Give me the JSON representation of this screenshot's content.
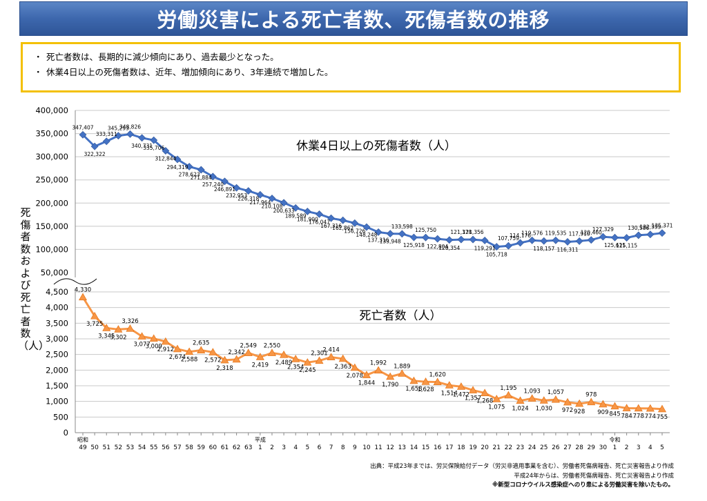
{
  "title": "労働災害による死亡者数、死傷者数の推移",
  "summary": [
    "死亡者数は、長期的に減少傾向にあり、過去最少となった。",
    "休業4日以上の死傷者数は、近年、増加傾向にあり、3年連続で増加した。"
  ],
  "bullet": "・",
  "y_axis_label": "死傷者数および死亡者数（人）",
  "source": {
    "line1": "出典：平成23年までは、労災保険給付データ（労災非適用事業を含む）、労働者死傷病報告、死亡災害報告より作成",
    "line2": "平成24年からは、労働者死傷病報告、死亡災害報告より作成",
    "line3": "※新型コロナウイルス感染症へのり患による労働災害を除いたもの。"
  },
  "chart_data": {
    "type": "line",
    "title": "",
    "x": [
      "49",
      "50",
      "51",
      "52",
      "53",
      "54",
      "55",
      "56",
      "57",
      "58",
      "59",
      "60",
      "61",
      "62",
      "63",
      "1",
      "2",
      "3",
      "4",
      "5",
      "6",
      "7",
      "8",
      "9",
      "10",
      "11",
      "12",
      "13",
      "14",
      "15",
      "16",
      "17",
      "18",
      "19",
      "20",
      "21",
      "22",
      "23",
      "24",
      "25",
      "26",
      "27",
      "28",
      "29",
      "30",
      "1",
      "2",
      "3",
      "4",
      "5"
    ],
    "era_labels": [
      {
        "index": 0,
        "label": "昭和"
      },
      {
        "index": 15,
        "label": "平成"
      },
      {
        "index": 45,
        "label": "令和"
      }
    ],
    "series": [
      {
        "name": "休業4日以上の死傷者数（人）",
        "color": "#4472c4",
        "marker": "diamond",
        "values": [
          347407,
          322322,
          333311,
          345293,
          348826,
          340731,
          335706,
          312844,
          294319,
          278623,
          271884,
          257240,
          246891,
          232953,
          226318,
          217964,
          210108,
          200633,
          189589,
          181900,
          176047,
          167316,
          162862,
          156726,
          148248,
          137316,
          133948,
          133598,
          125918,
          125750,
          122804,
          120354,
          121378,
          121356,
          119291,
          105718,
          107759,
          114176,
          119576,
          118157,
          119535,
          116311,
          117910,
          120460,
          127329,
          125611,
          125115,
          130586,
          132355,
          135371
        ],
        "labels": [
          "347,407",
          "322,322",
          "333,311",
          "345,293",
          "348,826",
          "340,731",
          "335,706",
          "312,844",
          "294,319",
          "278,623",
          "271,884",
          "257,240",
          "246,891",
          "232,953",
          "226,318",
          "217,964",
          "210,108",
          "200,633",
          "189,589",
          "181,900",
          "176,047",
          "167,316",
          "162,862",
          "156,726",
          "148,248",
          "137,316",
          "133,948",
          "133,598",
          "125,918",
          "125,750",
          "122,804",
          "120,354",
          "121,378",
          "121,356",
          "119,291",
          "105,718",
          "107,759",
          "114,176",
          "119,576",
          "118,157",
          "119,535",
          "116,311",
          "117,910",
          "120,460",
          "127,329",
          "125,611",
          "125,115",
          "130,586",
          "132,355",
          "135,371"
        ]
      },
      {
        "name": "死亡者数（人）",
        "color": "#f79646",
        "marker": "triangle",
        "values": [
          4330,
          3725,
          3345,
          3302,
          3326,
          3077,
          3009,
          2912,
          2674,
          2588,
          2635,
          2572,
          2318,
          2342,
          2549,
          2419,
          2550,
          2489,
          2354,
          2245,
          2301,
          2414,
          2363,
          2078,
          1844,
          1992,
          1790,
          1889,
          1658,
          1628,
          1620,
          1514,
          1472,
          1357,
          1268,
          1075,
          1195,
          1024,
          1093,
          1030,
          1057,
          972,
          928,
          978,
          909,
          845,
          784,
          778,
          774,
          755
        ],
        "labels": [
          "4,330",
          "3,725",
          "3,345",
          "3,302",
          "3,326",
          "3,077",
          "3,009",
          "2,912",
          "2,674",
          "2,588",
          "2,635",
          "2,572",
          "2,318",
          "2,342",
          "2,549",
          "2,419",
          "2,550",
          "2,489",
          "2,354",
          "2,245",
          "2,301",
          "2,414",
          "2,363",
          "2,078",
          "1,844",
          "1,992",
          "1,790",
          "1,889",
          "1,658",
          "1,628",
          "1,620",
          "1,514",
          "1,472",
          "1,357",
          "1,268",
          "1,075",
          "1,195",
          "1,024",
          "1,093",
          "1,030",
          "1,057",
          "972",
          "928",
          "978",
          "909",
          "845",
          "784",
          "778",
          "774",
          "755"
        ]
      }
    ],
    "y_ticks_injury": [
      "400,000",
      "350,000",
      "300,000",
      "250,000",
      "200,000",
      "150,000",
      "100,000",
      "50,000"
    ],
    "y_ticks_death": [
      "4,500",
      "4,000",
      "3,500",
      "3,000",
      "2,500",
      "2,000",
      "1,500",
      "1,000",
      "500",
      "0"
    ],
    "ylim_injury": [
      50000,
      400000
    ],
    "ylim_death": [
      0,
      4500
    ],
    "grid": true,
    "axis_break": true
  }
}
